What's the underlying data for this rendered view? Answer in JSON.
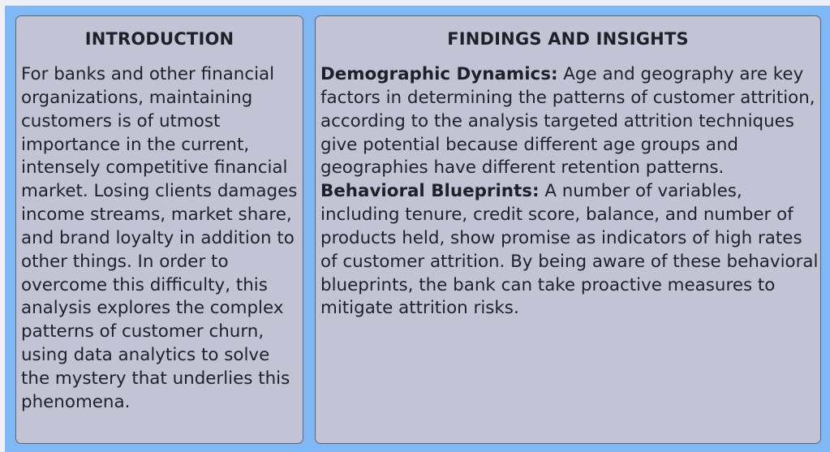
{
  "introduction": {
    "title": "INTRODUCTION",
    "body": "For banks and other financial organizations, maintaining customers is of utmost importance in the current, intensely competitive financial market. Losing clients damages income streams, market share, and brand loyalty in addition to other things. In order to overcome this difficulty, this analysis explores the complex patterns of customer churn, using data analytics to solve the mystery that underlies this phenomena."
  },
  "findings": {
    "title": "FINDINGS AND INSIGHTS",
    "items": [
      {
        "heading": "Demographic Dynamics:",
        "text": " Age and geography are key factors in determining the patterns of customer attrition, according to the analysis targeted attrition techniques give potential because different age groups and geographies have different retention patterns."
      },
      {
        "heading": "Behavioral Blueprints:",
        "text": " A number of variables, including tenure, credit score, balance, and number of products held, show promise as indicators of high rates of customer attrition. By being aware of these behavioral blueprints, the bank can take proactive measures to mitigate attrition risks."
      }
    ]
  },
  "colors": {
    "frame_background": "#7fb8f5",
    "card_background": "#c2c4d6",
    "card_border": "#5d6475",
    "text": "#1e2129"
  }
}
